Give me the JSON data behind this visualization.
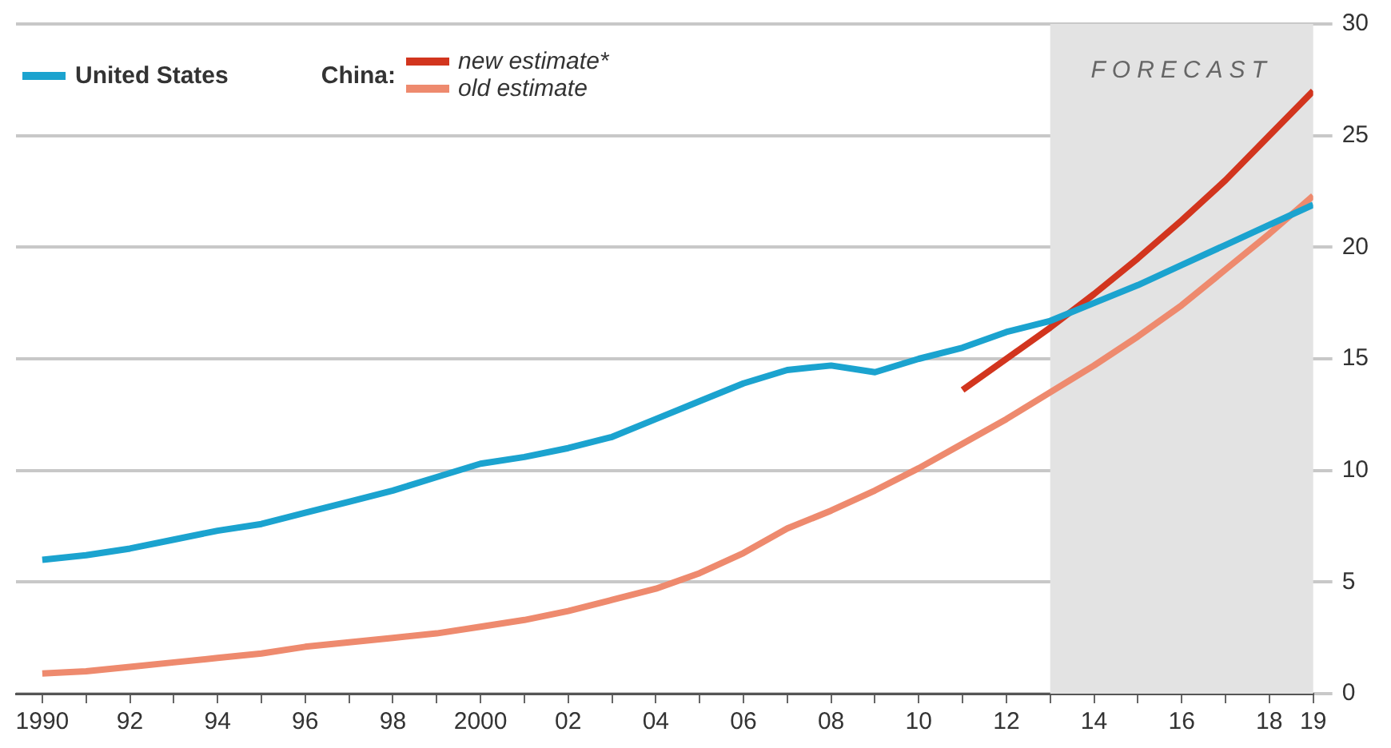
{
  "chart_data": {
    "type": "line",
    "x": [
      1990,
      1991,
      1992,
      1993,
      1994,
      1995,
      1996,
      1997,
      1998,
      1999,
      2000,
      2001,
      2002,
      2003,
      2004,
      2005,
      2006,
      2007,
      2008,
      2009,
      2010,
      2011,
      2012,
      2013,
      2014,
      2015,
      2016,
      2017,
      2018,
      2019
    ],
    "legend_title": "China:",
    "series": [
      {
        "name": "United States",
        "color": "#1ba3cf",
        "values": [
          6.0,
          6.2,
          6.5,
          6.9,
          7.3,
          7.6,
          8.1,
          8.6,
          9.1,
          9.7,
          10.3,
          10.6,
          11.0,
          11.5,
          12.3,
          13.1,
          13.9,
          14.5,
          14.7,
          14.4,
          15.0,
          15.5,
          16.2,
          16.7,
          17.5,
          18.3,
          19.2,
          20.1,
          21.0,
          21.9
        ]
      },
      {
        "name": "new estimate*",
        "color": "#d2351e",
        "x": [
          2011,
          2012,
          2013,
          2014,
          2015,
          2016,
          2017,
          2018,
          2019
        ],
        "values": [
          13.6,
          15.0,
          16.4,
          17.9,
          19.5,
          21.2,
          23.0,
          25.0,
          27.0
        ]
      },
      {
        "name": "old estimate",
        "color": "#ee8a6e",
        "values": [
          0.9,
          1.0,
          1.2,
          1.4,
          1.6,
          1.8,
          2.1,
          2.3,
          2.5,
          2.7,
          3.0,
          3.3,
          3.7,
          4.2,
          4.7,
          5.4,
          6.3,
          7.4,
          8.2,
          9.1,
          10.1,
          11.2,
          12.3,
          13.5,
          14.7,
          16.0,
          17.4,
          19.0,
          20.6,
          22.3
        ]
      }
    ],
    "xlim": [
      1989.4,
      2019
    ],
    "xticks": [
      {
        "value": 1990,
        "label": "1990"
      },
      {
        "value": 1991,
        "label": null
      },
      {
        "value": 1992,
        "label": "92"
      },
      {
        "value": 1993,
        "label": null
      },
      {
        "value": 1994,
        "label": "94"
      },
      {
        "value": 1995,
        "label": null
      },
      {
        "value": 1996,
        "label": "96"
      },
      {
        "value": 1997,
        "label": null
      },
      {
        "value": 1998,
        "label": "98"
      },
      {
        "value": 1999,
        "label": null
      },
      {
        "value": 2000,
        "label": "2000"
      },
      {
        "value": 2001,
        "label": null
      },
      {
        "value": 2002,
        "label": "02"
      },
      {
        "value": 2003,
        "label": null
      },
      {
        "value": 2004,
        "label": "04"
      },
      {
        "value": 2005,
        "label": null
      },
      {
        "value": 2006,
        "label": "06"
      },
      {
        "value": 2007,
        "label": null
      },
      {
        "value": 2008,
        "label": "08"
      },
      {
        "value": 2009,
        "label": null
      },
      {
        "value": 2010,
        "label": "10"
      },
      {
        "value": 2011,
        "label": null
      },
      {
        "value": 2012,
        "label": "12"
      },
      {
        "value": 2013,
        "label": null
      },
      {
        "value": 2014,
        "label": "14"
      },
      {
        "value": 2015,
        "label": null
      },
      {
        "value": 2016,
        "label": "16"
      },
      {
        "value": 2017,
        "label": null
      },
      {
        "value": 2018,
        "label": "18"
      },
      {
        "value": 2019,
        "label": "19"
      }
    ],
    "ylim": [
      0,
      30
    ],
    "yticks": [
      0,
      5,
      10,
      15,
      20,
      25,
      30
    ],
    "bands": [
      {
        "axis": "x",
        "from": 2013,
        "to": 2019,
        "label": "FORECAST",
        "color": "#e3e3e3"
      }
    ],
    "grid": "y",
    "legend": "top left",
    "marker": "none",
    "line_style": "solid"
  }
}
